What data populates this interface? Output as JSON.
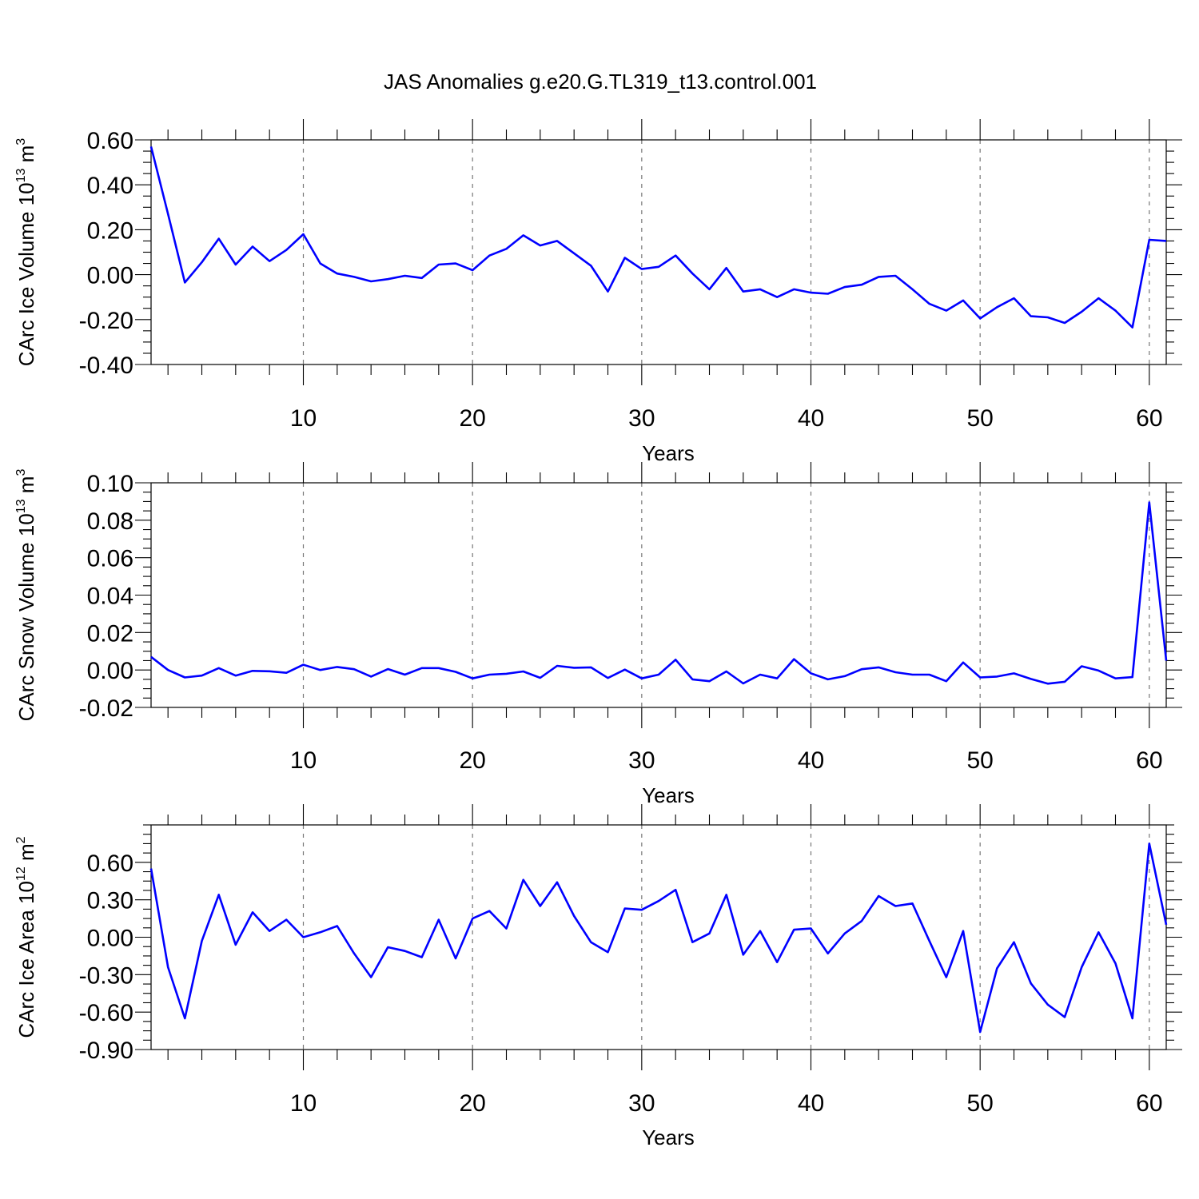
{
  "figure": {
    "title": "JAS Anomalies g.e20.G.TL319_t13.control.001",
    "line_color": "#0000ff"
  },
  "chart_data": [
    {
      "type": "line",
      "id": "ice-volume",
      "xlabel": "Years",
      "ylabel": {
        "text": "CArc Ice Volume 10",
        "superscript": "13",
        "unit": " m",
        "unit_superscript": "3"
      },
      "xlim": [
        1,
        61
      ],
      "ylim": [
        -0.4,
        0.6
      ],
      "xticks": [
        10,
        20,
        30,
        40,
        50,
        60
      ],
      "yticks": [
        "0.60",
        "0.40",
        "0.20",
        "0.00",
        "-0.20",
        "-0.40"
      ],
      "ytick_values": [
        0.6,
        0.4,
        0.2,
        0.0,
        -0.2,
        -0.4
      ],
      "y_minor_step": 0.05,
      "grid": "vertical dashed at major x ticks",
      "series": [
        {
          "x": [
            1,
            2,
            3,
            4,
            5,
            6,
            7,
            8,
            9,
            10,
            11,
            12,
            13,
            14,
            15,
            16,
            17,
            18,
            19,
            20,
            21,
            22,
            23,
            24,
            25,
            26,
            27,
            28,
            29,
            30,
            31,
            32,
            33,
            34,
            35,
            36,
            37,
            38,
            39,
            40,
            41,
            42,
            43,
            44,
            45,
            46,
            47,
            48,
            49,
            50,
            51,
            52,
            53,
            54,
            55,
            56,
            57,
            58,
            59,
            60,
            61
          ],
          "values": [
            0.57,
            0.27,
            -0.035,
            0.055,
            0.16,
            0.045,
            0.125,
            0.06,
            0.11,
            0.18,
            0.05,
            0.005,
            -0.01,
            -0.03,
            -0.02,
            -0.005,
            -0.015,
            0.045,
            0.05,
            0.02,
            0.085,
            0.115,
            0.175,
            0.13,
            0.15,
            0.095,
            0.04,
            -0.075,
            0.075,
            0.025,
            0.035,
            0.085,
            0.005,
            -0.065,
            0.03,
            -0.075,
            -0.065,
            -0.1,
            -0.065,
            -0.08,
            -0.085,
            -0.055,
            -0.045,
            -0.01,
            -0.005,
            -0.065,
            -0.13,
            -0.16,
            -0.115,
            -0.195,
            -0.145,
            -0.105,
            -0.185,
            -0.19,
            -0.215,
            -0.165,
            -0.105,
            -0.16,
            -0.235,
            0.155,
            0.15
          ]
        }
      ]
    },
    {
      "type": "line",
      "id": "snow-volume",
      "xlabel": "Years",
      "ylabel": {
        "text": "CArc Snow Volume 10",
        "superscript": "13",
        "unit": " m",
        "unit_superscript": "3"
      },
      "xlim": [
        1,
        61
      ],
      "ylim": [
        -0.02,
        0.1
      ],
      "xticks": [
        10,
        20,
        30,
        40,
        50,
        60
      ],
      "yticks": [
        "0.10",
        "0.08",
        "0.06",
        "0.04",
        "0.02",
        "0.00",
        "-0.02"
      ],
      "ytick_values": [
        0.1,
        0.08,
        0.06,
        0.04,
        0.02,
        0.0,
        -0.02
      ],
      "y_minor_step": 0.005,
      "grid": "vertical dashed at major x ticks",
      "series": [
        {
          "x": [
            1,
            2,
            3,
            4,
            5,
            6,
            7,
            8,
            9,
            10,
            11,
            12,
            13,
            14,
            15,
            16,
            17,
            18,
            19,
            20,
            21,
            22,
            23,
            24,
            25,
            26,
            27,
            28,
            29,
            30,
            31,
            32,
            33,
            34,
            35,
            36,
            37,
            38,
            39,
            40,
            41,
            42,
            43,
            44,
            45,
            46,
            47,
            48,
            49,
            50,
            51,
            52,
            53,
            54,
            55,
            56,
            57,
            58,
            59,
            60,
            61
          ],
          "values": [
            0.007,
            0.0,
            -0.004,
            -0.003,
            0.001,
            -0.003,
            -0.0005,
            -0.0007,
            -0.0015,
            0.0028,
            0.0,
            0.0016,
            0.0004,
            -0.0035,
            0.0005,
            -0.0025,
            0.001,
            0.001,
            -0.001,
            -0.0045,
            -0.0025,
            -0.002,
            -0.0008,
            -0.0042,
            0.0022,
            0.0012,
            0.0014,
            -0.0043,
            0.0002,
            -0.0045,
            -0.0025,
            0.0055,
            -0.005,
            -0.006,
            -0.0008,
            -0.0072,
            -0.0025,
            -0.0045,
            0.0058,
            -0.0018,
            -0.005,
            -0.0033,
            0.0004,
            0.0014,
            -0.0012,
            -0.0025,
            -0.0025,
            -0.006,
            0.004,
            -0.004,
            -0.0035,
            -0.0018,
            -0.0048,
            -0.0073,
            -0.0063,
            0.002,
            -0.0003,
            -0.0045,
            -0.0038,
            0.0895,
            0.005
          ]
        }
      ]
    },
    {
      "type": "line",
      "id": "ice-area",
      "xlabel": "Years",
      "ylabel": {
        "text": "CArc Ice Area 10",
        "superscript": "12",
        "unit": " m",
        "unit_superscript": "2"
      },
      "xlim": [
        1,
        61
      ],
      "ylim": [
        -0.9,
        0.9
      ],
      "xticks": [
        10,
        20,
        30,
        40,
        50,
        60
      ],
      "yticks": [
        "0.60",
        "0.30",
        "0.00",
        "-0.30",
        "-0.60",
        "-0.90"
      ],
      "ytick_values": [
        0.6,
        0.3,
        0.0,
        -0.3,
        -0.6,
        -0.9
      ],
      "y_minor_step": 0.075,
      "grid": "vertical dashed at major x ticks",
      "series": [
        {
          "x": [
            1,
            2,
            3,
            4,
            5,
            6,
            7,
            8,
            9,
            10,
            11,
            12,
            13,
            14,
            15,
            16,
            17,
            18,
            19,
            20,
            21,
            22,
            23,
            24,
            25,
            26,
            27,
            28,
            29,
            30,
            31,
            32,
            33,
            34,
            35,
            36,
            37,
            38,
            39,
            40,
            41,
            42,
            43,
            44,
            45,
            46,
            47,
            48,
            49,
            50,
            51,
            52,
            53,
            54,
            55,
            56,
            57,
            58,
            59,
            60,
            61
          ],
          "values": [
            0.55,
            -0.24,
            -0.65,
            -0.03,
            0.34,
            -0.06,
            0.2,
            0.05,
            0.14,
            0.0,
            0.04,
            0.09,
            -0.13,
            -0.32,
            -0.08,
            -0.11,
            -0.16,
            0.14,
            -0.17,
            0.15,
            0.21,
            0.07,
            0.46,
            0.25,
            0.44,
            0.17,
            -0.04,
            -0.12,
            0.23,
            0.22,
            0.29,
            0.38,
            -0.04,
            0.03,
            0.34,
            -0.14,
            0.05,
            -0.2,
            0.06,
            0.07,
            -0.13,
            0.03,
            0.13,
            0.33,
            0.25,
            0.27,
            -0.03,
            -0.32,
            0.05,
            -0.76,
            -0.25,
            -0.04,
            -0.37,
            -0.54,
            -0.64,
            -0.24,
            0.04,
            -0.21,
            -0.65,
            0.75,
            0.1
          ]
        }
      ]
    }
  ]
}
